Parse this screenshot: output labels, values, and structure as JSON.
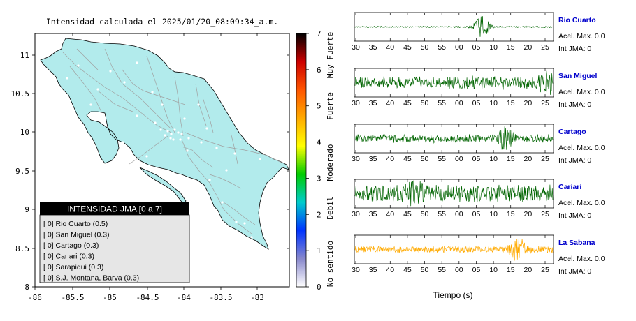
{
  "map": {
    "title": "Intensidad calculada el 2025/01/20_08:09:34_a.m.",
    "lat_ticks": [
      "11",
      "10.5",
      "10",
      "9.5",
      "9",
      "8.5",
      "8"
    ],
    "lon_ticks": [
      "-86",
      "-85.5",
      "-85",
      "-84.5",
      "-84",
      "-83.5",
      "-83"
    ],
    "land_color": "#b2ebec",
    "legend": {
      "title": "INTENSIDAD JMA [0 a 7]",
      "items": [
        "[ 0]  Rio Cuarto (0.5)",
        "[ 0]  San Miguel (0.3)",
        "[ 0]  Cartago (0.3)",
        "[ 0]  Cariari (0.3)",
        "[ 0]  Sarapiqui (0.3)",
        "[ 0]  S.J. Montana, Barva (0.3)"
      ]
    }
  },
  "colorbar": {
    "ticks": [
      "7",
      "6",
      "5",
      "4",
      "3",
      "2",
      "1",
      "0"
    ],
    "labels": [
      "Muy Fuerte",
      "Fuerte",
      "Moderado",
      "Debil",
      "No sentido"
    ],
    "colors": [
      "#000000",
      "#cc0000",
      "#ff5500",
      "#ffaa00",
      "#ffff00",
      "#00cc00",
      "#00cccc",
      "#0033ff",
      "#8888cc",
      "#ffffff"
    ]
  },
  "chart_data": {
    "type": "line",
    "xlabel": "Tiempo (s)",
    "x_ticks": [
      "30",
      "35",
      "40",
      "45",
      "50",
      "55",
      "00",
      "05",
      "10",
      "15",
      "20",
      "25"
    ],
    "series": [
      {
        "name": "Rio Cuarto",
        "accel": "Acel. Max. 0.0",
        "int": "Int JMA: 0",
        "color": "#006400",
        "noise": 0.06,
        "burst_at": 0.64,
        "burst_amp": 0.95,
        "fill": "#ffffff"
      },
      {
        "name": "San Miguel",
        "accel": "Acel. Max. 0.0",
        "int": "Int JMA: 0",
        "color": "#006400",
        "noise": 0.55,
        "burst_at": 0.97,
        "burst_amp": 0.9,
        "fill": "#ffffff"
      },
      {
        "name": "Cartago",
        "accel": "Acel. Max. 0.0",
        "int": "Int JMA: 0",
        "color": "#006400",
        "noise": 0.35,
        "burst_at": 0.76,
        "burst_amp": 0.8,
        "fill": "#ffffff"
      },
      {
        "name": "Cariari",
        "accel": "Acel. Max. 0.0",
        "int": "Int JMA: 0",
        "color": "#006400",
        "noise": 0.75,
        "burst_at": 0.3,
        "burst_amp": 0.85,
        "fill": "#ffffff"
      },
      {
        "name": "La Sabana",
        "accel": "Acel. Max. 0.0",
        "int": "Int JMA: 0",
        "color": "#ffaa00",
        "noise": 0.3,
        "burst_at": 0.82,
        "burst_amp": 0.95,
        "fill": "#ffffff"
      }
    ]
  }
}
